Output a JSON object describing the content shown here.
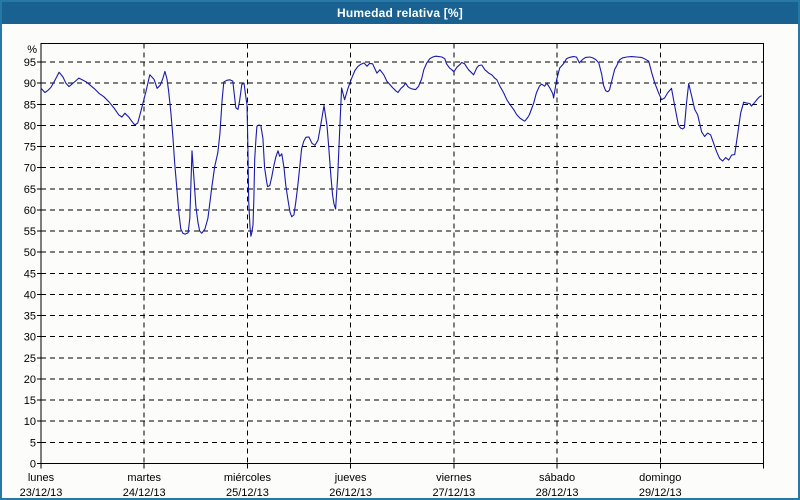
{
  "window": {
    "title": "Humedad relativa [%]"
  },
  "colors": {
    "titlebar_bg": "#186191",
    "frame": "#2679a6",
    "title_text": "#ffffff",
    "bg": "#fcfdfa",
    "line": "#1a1aaa",
    "grid": "#000000",
    "plot_border": "#000000",
    "text": "#000000"
  },
  "chart_data": {
    "type": "line",
    "title": "Humedad relativa [%]",
    "ylabel": "%",
    "ylim": [
      0,
      99.4
    ],
    "yticks": [
      0,
      5,
      10,
      15,
      20,
      25,
      30,
      35,
      40,
      45,
      50,
      55,
      60,
      65,
      70,
      75,
      80,
      85,
      90,
      95
    ],
    "xlim": [
      0,
      168
    ],
    "x_unit": "hours since Monday 00:00",
    "x_day_ticks_hours": [
      0,
      24,
      48,
      72,
      96,
      120,
      144,
      168
    ],
    "grid": "dashed",
    "legend": "none",
    "x_day_labels": [
      {
        "day": "lunes",
        "date": "23/12/13",
        "hour": 0
      },
      {
        "day": "martes",
        "date": "24/12/13",
        "hour": 24
      },
      {
        "day": "miércoles",
        "date": "25/12/13",
        "hour": 48
      },
      {
        "day": "jueves",
        "date": "26/12/13",
        "hour": 72
      },
      {
        "day": "viernes",
        "date": "27/12/13",
        "hour": 96
      },
      {
        "day": "sábado",
        "date": "28/12/13",
        "hour": 120
      },
      {
        "day": "domingo",
        "date": "29/12/13",
        "hour": 144
      }
    ],
    "series": [
      {
        "name": "Humedad relativa [%]",
        "color": "#1a1aaa",
        "points": [
          [
            0,
            88.8
          ],
          [
            0.9,
            87.8
          ],
          [
            1.6,
            88.3
          ],
          [
            2.3,
            89.0
          ],
          [
            3.3,
            90.8
          ],
          [
            4.2,
            92.6
          ],
          [
            5.1,
            91.5
          ],
          [
            5.8,
            90.0
          ],
          [
            6.5,
            89.2
          ],
          [
            7.2,
            89.8
          ],
          [
            7.9,
            90.4
          ],
          [
            8.8,
            91.2
          ],
          [
            9.8,
            90.7
          ],
          [
            10.7,
            90.2
          ],
          [
            11.6,
            89.4
          ],
          [
            12.5,
            88.6
          ],
          [
            13.5,
            87.6
          ],
          [
            14.6,
            86.8
          ],
          [
            15.8,
            85.6
          ],
          [
            17.0,
            84.1
          ],
          [
            18.1,
            82.5
          ],
          [
            18.8,
            82.0
          ],
          [
            19.5,
            82.9
          ],
          [
            20.4,
            82.0
          ],
          [
            21.1,
            81.0
          ],
          [
            21.8,
            80.1
          ],
          [
            22.5,
            80.6
          ],
          [
            23.5,
            84.5
          ],
          [
            24.4,
            88.0
          ],
          [
            25.3,
            92.0
          ],
          [
            26.3,
            90.9
          ],
          [
            27.0,
            88.8
          ],
          [
            27.7,
            89.5
          ],
          [
            28.3,
            91.0
          ],
          [
            28.8,
            92.8
          ],
          [
            29.3,
            91.0
          ],
          [
            29.7,
            88.0
          ],
          [
            30.2,
            83.0
          ],
          [
            30.7,
            77.0
          ],
          [
            31.1,
            71.0
          ],
          [
            31.6,
            65.0
          ],
          [
            32.1,
            59.0
          ],
          [
            32.5,
            55.5
          ],
          [
            33.0,
            54.5
          ],
          [
            33.5,
            54.3
          ],
          [
            34.2,
            54.6
          ],
          [
            34.6,
            58.0
          ],
          [
            35.1,
            74.0
          ],
          [
            35.6,
            67.0
          ],
          [
            36.0,
            61.0
          ],
          [
            36.5,
            57.0
          ],
          [
            36.9,
            55.0
          ],
          [
            37.4,
            54.5
          ],
          [
            38.1,
            55.5
          ],
          [
            38.8,
            58.0
          ],
          [
            39.7,
            65.2
          ],
          [
            40.4,
            70.3
          ],
          [
            41.1,
            73.5
          ],
          [
            41.6,
            78.0
          ],
          [
            42.1,
            86.0
          ],
          [
            42.5,
            90.3
          ],
          [
            43.2,
            90.7
          ],
          [
            43.9,
            90.8
          ],
          [
            44.6,
            90.5
          ],
          [
            45.3,
            84.2
          ],
          [
            45.8,
            83.8
          ],
          [
            46.2,
            86.0
          ],
          [
            46.7,
            89.7
          ],
          [
            47.2,
            90.0
          ],
          [
            47.6,
            87.0
          ],
          [
            47.9,
            84.9
          ],
          [
            48.1,
            75.0
          ],
          [
            48.3,
            62.0
          ],
          [
            48.6,
            56.0
          ],
          [
            48.8,
            53.8
          ],
          [
            49.0,
            54.5
          ],
          [
            49.3,
            56.5
          ],
          [
            49.5,
            63.0
          ],
          [
            49.7,
            72.0
          ],
          [
            50.0,
            77.0
          ],
          [
            50.2,
            79.8
          ],
          [
            50.7,
            80.1
          ],
          [
            51.1,
            80.0
          ],
          [
            51.6,
            77.0
          ],
          [
            52.0,
            70.0
          ],
          [
            52.5,
            66.5
          ],
          [
            52.7,
            65.5
          ],
          [
            53.2,
            65.8
          ],
          [
            53.7,
            68.0
          ],
          [
            54.1,
            70.3
          ],
          [
            54.6,
            72.5
          ],
          [
            55.1,
            74.0
          ],
          [
            55.5,
            72.7
          ],
          [
            56.0,
            73.3
          ],
          [
            56.5,
            70.0
          ],
          [
            56.9,
            66.0
          ],
          [
            57.4,
            62.5
          ],
          [
            57.9,
            59.5
          ],
          [
            58.3,
            58.4
          ],
          [
            58.8,
            58.8
          ],
          [
            59.2,
            61.5
          ],
          [
            59.7,
            65.5
          ],
          [
            60.2,
            70.5
          ],
          [
            60.6,
            74.5
          ],
          [
            61.1,
            76.3
          ],
          [
            61.6,
            77.2
          ],
          [
            62.3,
            77.3
          ],
          [
            63.0,
            75.8
          ],
          [
            63.7,
            75.3
          ],
          [
            64.4,
            76.5
          ],
          [
            65.1,
            80.5
          ],
          [
            65.8,
            84.7
          ],
          [
            66.5,
            80.0
          ],
          [
            66.9,
            75.0
          ],
          [
            67.4,
            68.0
          ],
          [
            67.8,
            63.5
          ],
          [
            68.1,
            61.5
          ],
          [
            68.5,
            60.2
          ],
          [
            69.0,
            68.0
          ],
          [
            69.5,
            80.0
          ],
          [
            69.9,
            88.9
          ],
          [
            70.6,
            86.1
          ],
          [
            71.3,
            88.5
          ],
          [
            71.8,
            90.0
          ],
          [
            72.3,
            91.3
          ],
          [
            73.0,
            93.0
          ],
          [
            73.7,
            94.0
          ],
          [
            74.4,
            94.5
          ],
          [
            75.1,
            94.8
          ],
          [
            75.8,
            94.0
          ],
          [
            76.4,
            94.7
          ],
          [
            77.1,
            94.6
          ],
          [
            78.1,
            92.4
          ],
          [
            78.8,
            93.2
          ],
          [
            79.7,
            92.0
          ],
          [
            80.4,
            90.5
          ],
          [
            81.1,
            89.7
          ],
          [
            81.8,
            88.9
          ],
          [
            82.5,
            88.2
          ],
          [
            83.0,
            87.8
          ],
          [
            83.7,
            88.8
          ],
          [
            84.3,
            89.3
          ],
          [
            84.8,
            90.0
          ],
          [
            85.3,
            89.2
          ],
          [
            85.7,
            88.9
          ],
          [
            86.4,
            88.6
          ],
          [
            87.1,
            88.5
          ],
          [
            87.8,
            89.3
          ],
          [
            88.5,
            91.0
          ],
          [
            89.0,
            93.2
          ],
          [
            89.7,
            94.8
          ],
          [
            90.4,
            95.8
          ],
          [
            91.1,
            96.2
          ],
          [
            91.8,
            96.4
          ],
          [
            92.5,
            96.3
          ],
          [
            93.2,
            96.2
          ],
          [
            93.9,
            95.8
          ],
          [
            94.3,
            94.6
          ],
          [
            95.0,
            93.6
          ],
          [
            95.5,
            93.2
          ],
          [
            96.0,
            92.7
          ],
          [
            96.7,
            93.8
          ],
          [
            97.4,
            94.4
          ],
          [
            97.8,
            94.9
          ],
          [
            98.5,
            94.6
          ],
          [
            99.0,
            93.8
          ],
          [
            99.4,
            93.2
          ],
          [
            100.1,
            92.5
          ],
          [
            100.6,
            92.0
          ],
          [
            101.3,
            93.6
          ],
          [
            101.8,
            94.2
          ],
          [
            102.5,
            94.3
          ],
          [
            103.2,
            93.2
          ],
          [
            104.1,
            92.4
          ],
          [
            104.8,
            92.0
          ],
          [
            105.5,
            91.2
          ],
          [
            106.0,
            90.8
          ],
          [
            106.7,
            89.3
          ],
          [
            107.6,
            87.7
          ],
          [
            108.3,
            86.1
          ],
          [
            109.0,
            85.0
          ],
          [
            109.9,
            83.8
          ],
          [
            110.6,
            82.6
          ],
          [
            111.3,
            81.8
          ],
          [
            112.0,
            81.3
          ],
          [
            112.5,
            81.0
          ],
          [
            113.2,
            81.9
          ],
          [
            113.6,
            82.6
          ],
          [
            114.6,
            85.4
          ],
          [
            115.2,
            87.7
          ],
          [
            115.9,
            89.3
          ],
          [
            116.4,
            89.8
          ],
          [
            117.1,
            89.3
          ],
          [
            117.6,
            90.0
          ],
          [
            118.3,
            88.9
          ],
          [
            119.0,
            87.5
          ],
          [
            119.2,
            86.5
          ],
          [
            119.9,
            90.8
          ],
          [
            120.6,
            93.6
          ],
          [
            121.5,
            94.6
          ],
          [
            122.2,
            95.8
          ],
          [
            122.9,
            96.1
          ],
          [
            123.8,
            96.3
          ],
          [
            124.5,
            96.2
          ],
          [
            125.2,
            94.8
          ],
          [
            125.9,
            95.6
          ],
          [
            126.6,
            96.1
          ],
          [
            127.6,
            96.2
          ],
          [
            128.3,
            96.0
          ],
          [
            129.0,
            95.6
          ],
          [
            129.7,
            94.8
          ],
          [
            130.4,
            92.0
          ],
          [
            130.8,
            89.5
          ],
          [
            131.3,
            88.2
          ],
          [
            131.8,
            88.0
          ],
          [
            132.2,
            88.4
          ],
          [
            132.7,
            90.5
          ],
          [
            133.4,
            93.3
          ],
          [
            133.8,
            94.0
          ],
          [
            134.5,
            95.5
          ],
          [
            135.2,
            96.0
          ],
          [
            136.2,
            96.2
          ],
          [
            137.3,
            96.3
          ],
          [
            138.5,
            96.2
          ],
          [
            139.6,
            96.1
          ],
          [
            140.3,
            95.8
          ],
          [
            141.3,
            95.2
          ],
          [
            142.0,
            92.5
          ],
          [
            142.7,
            90.1
          ],
          [
            143.6,
            87.7
          ],
          [
            144.3,
            86.1
          ],
          [
            145.0,
            86.5
          ],
          [
            145.7,
            87.7
          ],
          [
            146.6,
            88.8
          ],
          [
            147.3,
            84.9
          ],
          [
            148.2,
            80.2
          ],
          [
            148.7,
            79.4
          ],
          [
            149.2,
            79.2
          ],
          [
            149.6,
            79.5
          ],
          [
            150.1,
            85.3
          ],
          [
            150.6,
            89.9
          ],
          [
            151.3,
            86.9
          ],
          [
            152.0,
            83.8
          ],
          [
            152.7,
            82.5
          ],
          [
            153.6,
            78.5
          ],
          [
            154.3,
            77.4
          ],
          [
            155.0,
            78.2
          ],
          [
            155.7,
            77.8
          ],
          [
            156.4,
            75.8
          ],
          [
            157.1,
            73.8
          ],
          [
            157.8,
            72.2
          ],
          [
            158.5,
            71.6
          ],
          [
            159.2,
            72.4
          ],
          [
            159.9,
            71.8
          ],
          [
            160.6,
            73.0
          ],
          [
            161.3,
            73.1
          ],
          [
            162.0,
            78.0
          ],
          [
            162.7,
            83.0
          ],
          [
            163.4,
            85.5
          ],
          [
            164.1,
            85.3
          ],
          [
            164.8,
            85.2
          ],
          [
            165.2,
            84.6
          ],
          [
            165.9,
            85.4
          ],
          [
            166.6,
            86.3
          ],
          [
            167.1,
            86.8
          ],
          [
            167.5,
            87.0
          ]
        ]
      }
    ]
  }
}
